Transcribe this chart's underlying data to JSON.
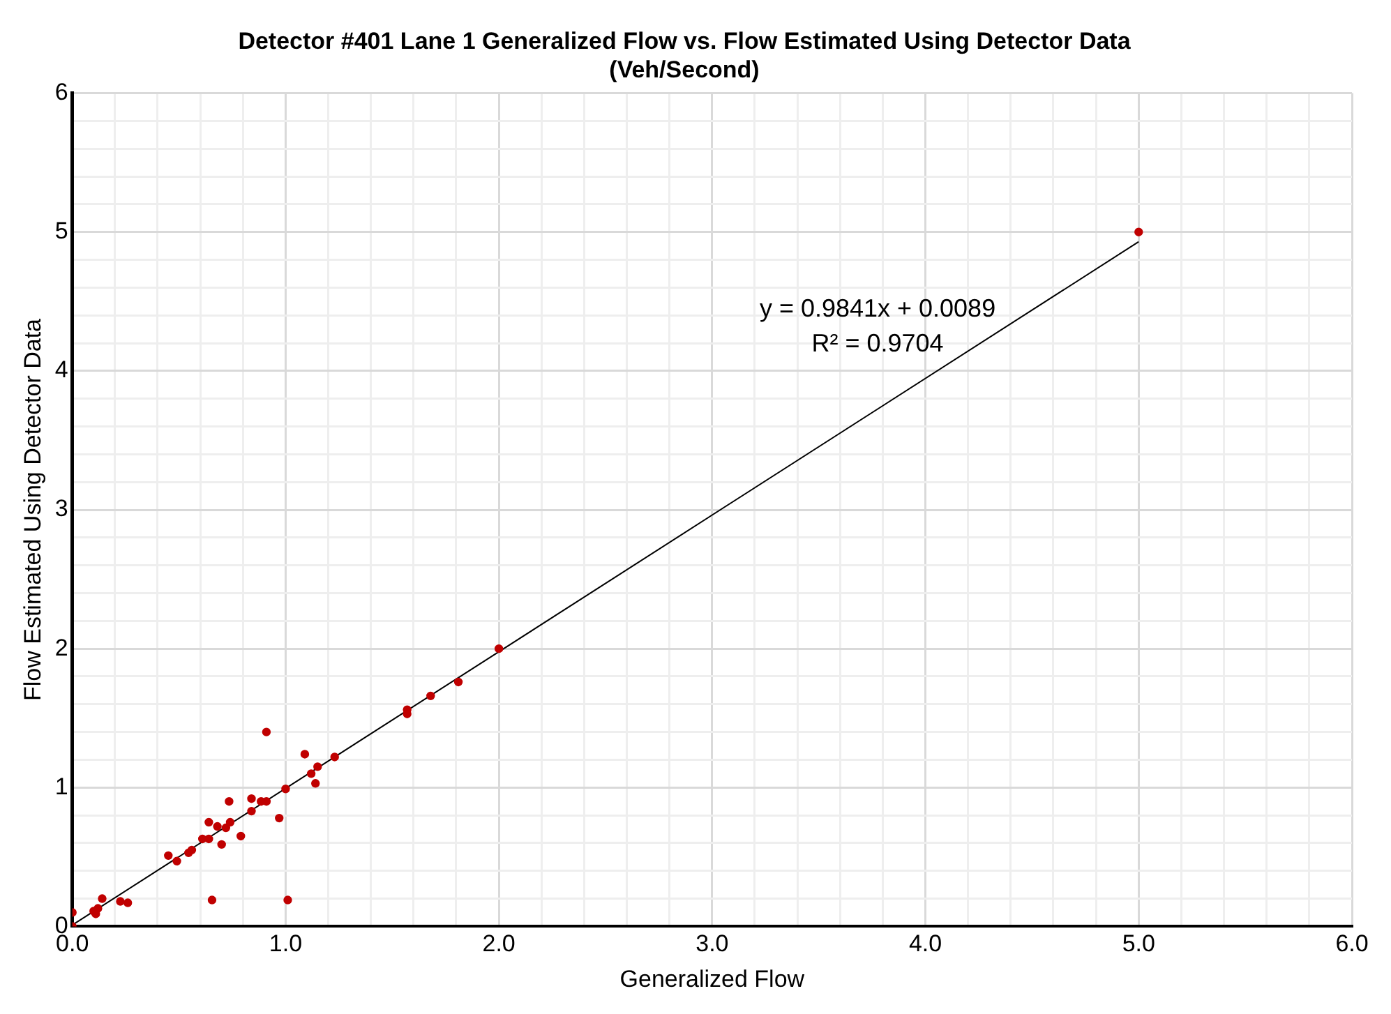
{
  "chart_data": {
    "type": "scatter",
    "title": "Detector #401 Lane 1 Generalized Flow vs. Flow Estimated Using Detector Data\n(Veh/Second)",
    "xlabel": "Generalized Flow",
    "ylabel": "Flow Estimated Using Detector Data",
    "series": [
      {
        "type": "scatter",
        "color": "#c00000",
        "marker": "circle",
        "x": [
          0,
          0,
          0.11,
          0.12,
          0.1,
          0.14,
          0.225,
          0.26,
          0.45,
          0.49,
          0.545,
          0.56,
          0.61,
          0.64,
          0.64,
          0.68,
          0.7,
          0.72,
          0.74,
          0.735,
          0.79,
          0.655,
          0.84,
          0.84,
          0.885,
          0.91,
          0.91,
          0.97,
          1.0,
          1.01,
          1.09,
          1.12,
          1.14,
          1.15,
          1.23,
          1.57,
          1.57,
          1.68,
          1.81,
          2.0,
          5.0
        ],
        "values": [
          0,
          0.1,
          0.09,
          0.13,
          0.11,
          0.2,
          0.18,
          0.17,
          0.51,
          0.47,
          0.53,
          0.55,
          0.63,
          0.63,
          0.75,
          0.72,
          0.59,
          0.71,
          0.75,
          0.9,
          0.65,
          0.19,
          0.92,
          0.83,
          0.9,
          0.9,
          1.4,
          0.78,
          0.99,
          0.19,
          1.24,
          1.1,
          1.03,
          1.15,
          1.22,
          1.56,
          1.53,
          1.66,
          1.76,
          2.0,
          5.0
        ]
      },
      {
        "type": "line",
        "color": "#000000",
        "marker": "none",
        "x": [
          0,
          5
        ],
        "values": [
          0.01,
          4.93
        ]
      }
    ],
    "annotations": [
      "y = 0.9841x + 0.0089",
      "R² = 0.9704"
    ],
    "xlim": [
      0,
      6
    ],
    "ylim": [
      0,
      6
    ],
    "xticks": [
      {
        "value": 0,
        "label": "0.0"
      },
      {
        "value": 0.2,
        "label": null
      },
      {
        "value": 0.4,
        "label": null
      },
      {
        "value": 0.6,
        "label": null
      },
      {
        "value": 0.8,
        "label": null
      },
      {
        "value": 1,
        "label": "1.0"
      },
      {
        "value": 1.2,
        "label": null
      },
      {
        "value": 1.4,
        "label": null
      },
      {
        "value": 1.6,
        "label": null
      },
      {
        "value": 1.8,
        "label": null
      },
      {
        "value": 2,
        "label": "2.0"
      },
      {
        "value": 2.2,
        "label": null
      },
      {
        "value": 2.4,
        "label": null
      },
      {
        "value": 2.6,
        "label": null
      },
      {
        "value": 2.8,
        "label": null
      },
      {
        "value": 3,
        "label": "3.0"
      },
      {
        "value": 3.2,
        "label": null
      },
      {
        "value": 3.4,
        "label": null
      },
      {
        "value": 3.6,
        "label": null
      },
      {
        "value": 3.8,
        "label": null
      },
      {
        "value": 4,
        "label": "4.0"
      },
      {
        "value": 4.2,
        "label": null
      },
      {
        "value": 4.4,
        "label": null
      },
      {
        "value": 4.6,
        "label": null
      },
      {
        "value": 4.8,
        "label": null
      },
      {
        "value": 5,
        "label": "5.0"
      },
      {
        "value": 5.2,
        "label": null
      },
      {
        "value": 5.4,
        "label": null
      },
      {
        "value": 5.6,
        "label": null
      },
      {
        "value": 5.8,
        "label": null
      },
      {
        "value": 6,
        "label": "6.0"
      }
    ],
    "yticks": [
      0,
      {
        "value": 0.2,
        "label": null
      },
      {
        "value": 0.4,
        "label": null
      },
      {
        "value": 0.6,
        "label": null
      },
      {
        "value": 0.8,
        "label": null
      },
      1,
      {
        "value": 1.2,
        "label": null
      },
      {
        "value": 1.4,
        "label": null
      },
      {
        "value": 1.6,
        "label": null
      },
      {
        "value": 1.8,
        "label": null
      },
      2,
      {
        "value": 2.2,
        "label": null
      },
      {
        "value": 2.4,
        "label": null
      },
      {
        "value": 2.6,
        "label": null
      },
      {
        "value": 2.8,
        "label": null
      },
      3,
      {
        "value": 3.2,
        "label": null
      },
      {
        "value": 3.4,
        "label": null
      },
      {
        "value": 3.6,
        "label": null
      },
      {
        "value": 3.8,
        "label": null
      },
      4,
      {
        "value": 4.2,
        "label": null
      },
      {
        "value": 4.4,
        "label": null
      },
      {
        "value": 4.6,
        "label": null
      },
      {
        "value": 4.8,
        "label": null
      },
      5,
      {
        "value": 5.2,
        "label": null
      },
      {
        "value": 5.4,
        "label": null
      },
      {
        "value": 5.6,
        "label": null
      },
      {
        "value": 5.8,
        "label": null
      },
      6
    ],
    "grid": true,
    "legend": false
  }
}
